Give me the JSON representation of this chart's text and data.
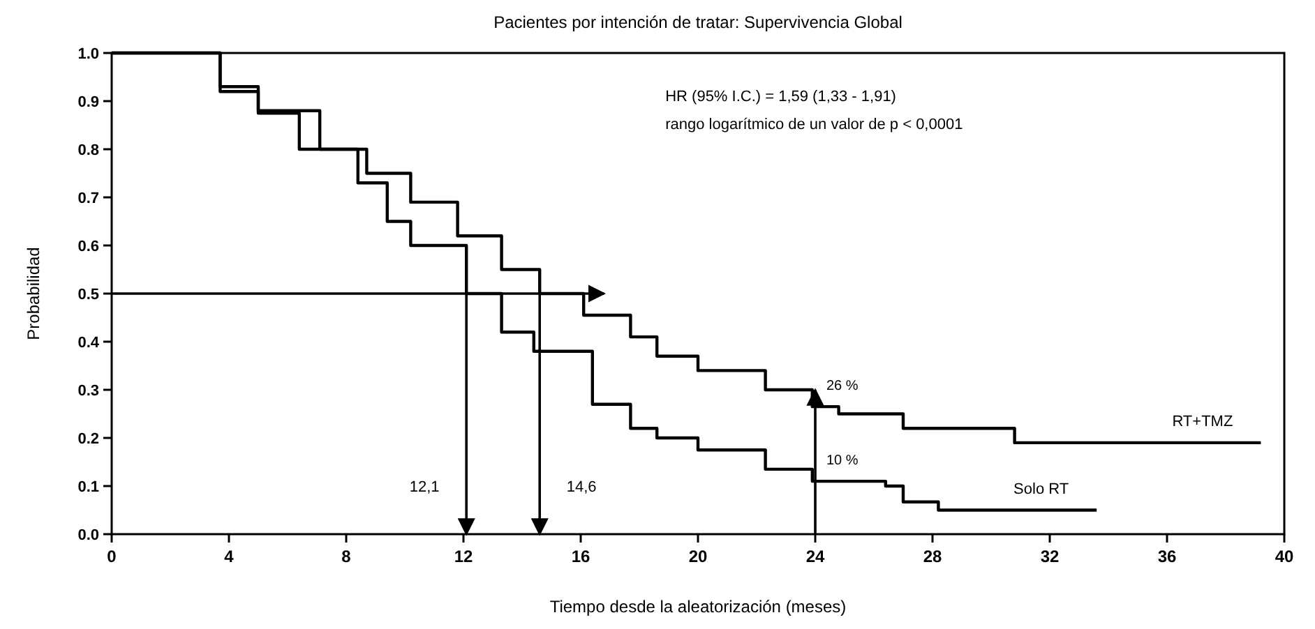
{
  "chart_data": {
    "type": "step",
    "title": "Pacientes por intención de tratar: Supervivencia Global",
    "xlabel": "Tiempo desde la aleatorización (meses)",
    "ylabel": "Probabilidad",
    "xlim": [
      0,
      40
    ],
    "xticks": [
      0,
      4,
      8,
      12,
      16,
      20,
      24,
      28,
      32,
      36,
      40
    ],
    "ylim": [
      0,
      1
    ],
    "yticks": [
      {
        "value": 0,
        "label": "0.0"
      },
      {
        "value": 0.1,
        "label": "0.1"
      },
      {
        "value": 0.2,
        "label": "0.2"
      },
      {
        "value": 0.3,
        "label": "0.3"
      },
      {
        "value": 0.4,
        "label": "0.4"
      },
      {
        "value": 0.5,
        "label": "0.5"
      },
      {
        "value": 0.6,
        "label": "0.6"
      },
      {
        "value": 0.7,
        "label": "0.7"
      },
      {
        "value": 0.8,
        "label": "0.8"
      },
      {
        "value": 0.9,
        "label": "0.9"
      },
      {
        "value": 1,
        "label": "1.0"
      }
    ],
    "grid": false,
    "legend": false,
    "marker": "none",
    "series": [
      {
        "name": "RT+TMZ",
        "color": "#000000",
        "x": [
          0,
          3.7,
          5,
          7.1,
          8.7,
          10.2,
          11.8,
          13.3,
          14.6,
          16.1,
          17.7,
          18.6,
          20,
          22.3,
          23.9,
          24.8,
          27,
          29.8,
          30.8,
          39.2
        ],
        "values": [
          1,
          0.93,
          0.88,
          0.8,
          0.75,
          0.69,
          0.62,
          0.55,
          0.5,
          0.455,
          0.41,
          0.37,
          0.34,
          0.3,
          0.265,
          0.25,
          0.22,
          0.22,
          0.19,
          0.19
        ]
      },
      {
        "name": "Solo RT",
        "color": "#000000",
        "x": [
          0,
          3.7,
          5,
          6.4,
          8.4,
          9.4,
          10.2,
          12.1,
          13.3,
          14.4,
          16.4,
          17.7,
          18.6,
          20,
          22.3,
          23.9,
          26.4,
          27,
          28.2,
          33.6
        ],
        "values": [
          1,
          0.92,
          0.875,
          0.8,
          0.73,
          0.65,
          0.6,
          0.5,
          0.42,
          0.38,
          0.27,
          0.22,
          0.2,
          0.175,
          0.135,
          0.11,
          0.1,
          0.067,
          0.05,
          0.05
        ]
      }
    ],
    "ref_lines": [
      {
        "axis": "y",
        "value": 0.5,
        "label": null
      },
      {
        "axis": "x",
        "value": 12.1,
        "label": "12,1"
      },
      {
        "axis": "x",
        "value": 14.6,
        "label": "14,6"
      },
      {
        "axis": "x",
        "value": 24,
        "label": null
      }
    ],
    "annotations": [
      "HR (95% I.C.) = 1,59 (1,33 - 1,91)",
      "rango logarítmico de un valor de p < 0,0001",
      {
        "text": "26 %",
        "x": 24,
        "y": 0.265
      },
      {
        "text": "10 %",
        "x": 24,
        "y": 0.11
      }
    ]
  }
}
